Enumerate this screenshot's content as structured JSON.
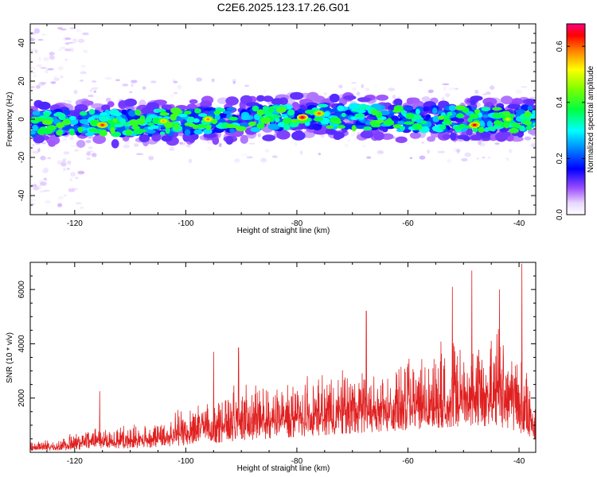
{
  "title": "C2E6.2025.123.17.26.G01",
  "chart_data": [
    {
      "type": "heatmap",
      "xlabel": "Height of straight line (km)",
      "ylabel": "Frequency (Hz)",
      "xlim": [
        -128,
        -37
      ],
      "ylim": [
        -50,
        50
      ],
      "x_ticks": [
        -120,
        -100,
        -80,
        -60,
        -40
      ],
      "y_ticks": [
        -40,
        -20,
        0,
        20,
        40
      ],
      "colorbar": {
        "label": "Normalized spectral amplitude",
        "range": [
          0,
          0.68
        ],
        "ticks": [
          0.0,
          0.2,
          0.4,
          0.6
        ]
      },
      "band": {
        "center_hz": [
          {
            "x": -128,
            "y": -2
          },
          {
            "x": -110,
            "y": -2
          },
          {
            "x": -90,
            "y": 0
          },
          {
            "x": -75,
            "y": 2
          },
          {
            "x": -60,
            "y": 0
          },
          {
            "x": -37,
            "y": 0
          }
        ],
        "halfwidth_hz": 6
      },
      "peaks": [
        {
          "x": -115,
          "y": -3,
          "amp": 0.62
        },
        {
          "x": -104,
          "y": -1,
          "amp": 0.55
        },
        {
          "x": -96,
          "y": 0,
          "amp": 0.58
        },
        {
          "x": -79,
          "y": 1,
          "amp": 0.66
        },
        {
          "x": -76,
          "y": 3,
          "amp": 0.6
        },
        {
          "x": -48,
          "y": -3,
          "amp": 0.64
        },
        {
          "x": -42,
          "y": 0,
          "amp": 0.5
        }
      ]
    },
    {
      "type": "line",
      "xlabel": "Height of straight line (km)",
      "ylabel": "SNR (10 * v/v)",
      "xlim": [
        -128,
        -37
      ],
      "ylim": [
        0,
        7000
      ],
      "x_ticks": [
        -120,
        -100,
        -80,
        -60,
        -40
      ],
      "y_ticks": [
        2000,
        4000,
        6000
      ],
      "series": [
        {
          "color": "#e02020",
          "envelope": [
            {
              "x": -128,
              "lo": 60,
              "hi": 500
            },
            {
              "x": -123,
              "lo": 60,
              "hi": 650
            },
            {
              "x": -118,
              "lo": 100,
              "hi": 1200
            },
            {
              "x": -110,
              "lo": 150,
              "hi": 1300
            },
            {
              "x": -104,
              "lo": 200,
              "hi": 1500
            },
            {
              "x": -98,
              "lo": 300,
              "hi": 2500
            },
            {
              "x": -92,
              "lo": 400,
              "hi": 3000
            },
            {
              "x": -85,
              "lo": 500,
              "hi": 3200
            },
            {
              "x": -78,
              "lo": 600,
              "hi": 3500
            },
            {
              "x": -70,
              "lo": 700,
              "hi": 4000
            },
            {
              "x": -62,
              "lo": 800,
              "hi": 4200
            },
            {
              "x": -55,
              "lo": 900,
              "hi": 4800
            },
            {
              "x": -48,
              "lo": 1000,
              "hi": 5500
            },
            {
              "x": -42,
              "lo": 900,
              "hi": 6000
            },
            {
              "x": -37,
              "lo": 500,
              "hi": 2500
            }
          ],
          "peaks": [
            {
              "x": -115.5,
              "y": 2250
            },
            {
              "x": -95,
              "y": 3700
            },
            {
              "x": -90.5,
              "y": 3850
            },
            {
              "x": -67.5,
              "y": 5200
            },
            {
              "x": -52,
              "y": 6100
            },
            {
              "x": -48.5,
              "y": 6700
            },
            {
              "x": -43.5,
              "y": 6000
            },
            {
              "x": -39.5,
              "y": 6950
            }
          ]
        }
      ]
    }
  ]
}
